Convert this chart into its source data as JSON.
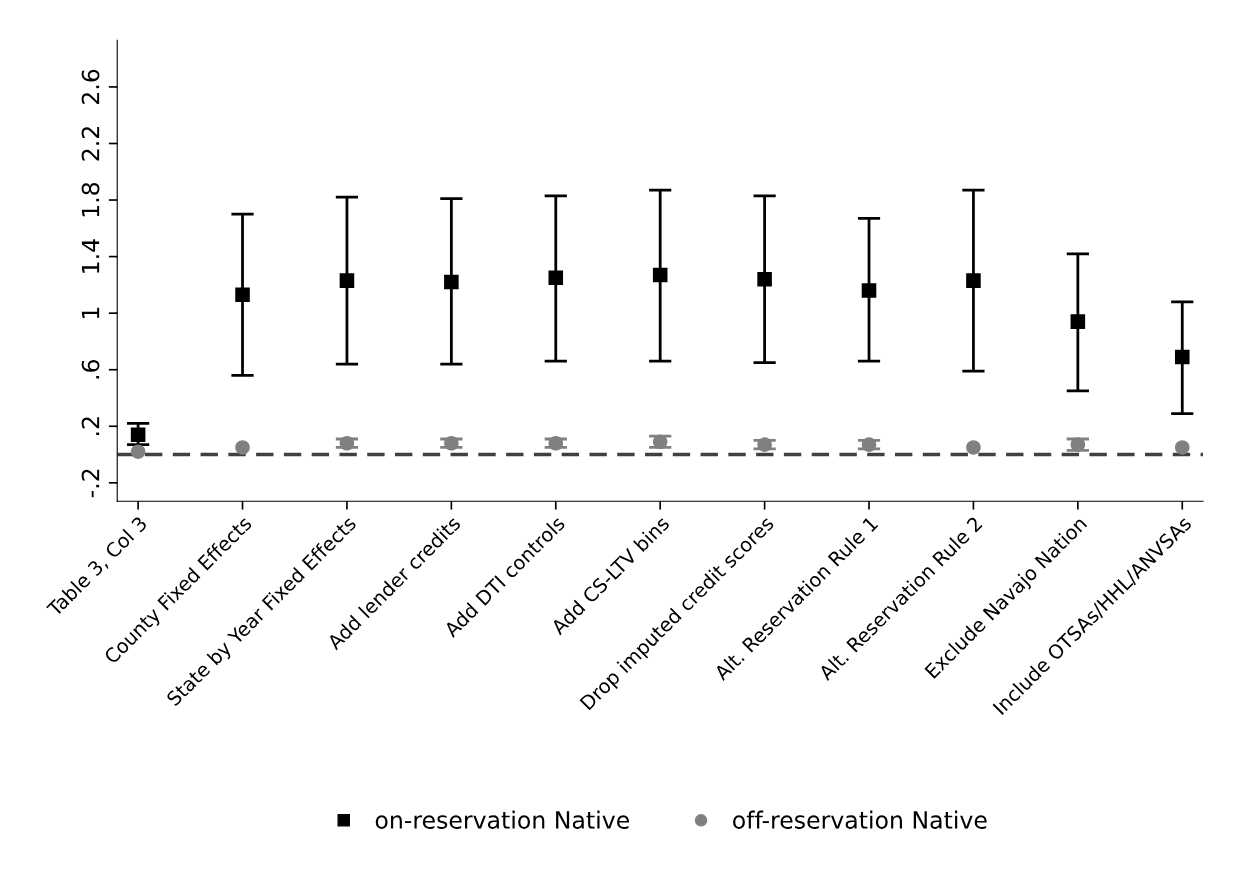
{
  "chart_data": {
    "type": "scatter",
    "categories": [
      "Table 3, Col 3",
      "County Fixed Effects",
      "State by Year Fixed Effects",
      "Add lender credits",
      "Add DTI controls",
      "Add CS-LTV bins",
      "Drop imputed credit scores",
      "Alt. Reservation Rule 1",
      "Alt. Reservation Rule 2",
      "Exclude Navajo Nation",
      "Include OTSAs/HHL/ANVSAs"
    ],
    "series": [
      {
        "name": "on-reservation Native",
        "color": "#000000",
        "marker": "square",
        "values": [
          0.14,
          1.13,
          1.23,
          1.22,
          1.25,
          1.27,
          1.24,
          1.16,
          1.23,
          0.94,
          0.69
        ],
        "errors": [
          [
            0.07,
            0.22
          ],
          [
            0.56,
            1.7
          ],
          [
            0.64,
            1.82
          ],
          [
            0.64,
            1.81
          ],
          [
            0.66,
            1.83
          ],
          [
            0.66,
            1.87
          ],
          [
            0.65,
            1.83
          ],
          [
            0.66,
            1.67
          ],
          [
            0.59,
            1.87
          ],
          [
            0.45,
            1.42
          ],
          [
            0.29,
            1.08
          ]
        ]
      },
      {
        "name": "off-reservation Native",
        "color": "#808080",
        "marker": "circle",
        "values": [
          0.02,
          0.05,
          0.08,
          0.08,
          0.08,
          0.09,
          0.07,
          0.07,
          0.05,
          0.07,
          0.05
        ],
        "errors": [
          null,
          null,
          [
            0.05,
            0.11
          ],
          [
            0.05,
            0.11
          ],
          [
            0.05,
            0.11
          ],
          [
            0.05,
            0.13
          ],
          [
            0.04,
            0.1
          ],
          [
            0.04,
            0.1
          ],
          null,
          [
            0.03,
            0.11
          ],
          null
        ]
      }
    ],
    "ylim": [
      -0.33,
      2.93
    ],
    "yticks": [
      {
        "value": -0.2,
        "label": "-.2"
      },
      {
        "value": 0.2,
        "label": ".2"
      },
      {
        "value": 0.6,
        "label": ".6"
      },
      {
        "value": 1,
        "label": "1"
      },
      {
        "value": 1.4,
        "label": "1.4"
      },
      {
        "value": 1.8,
        "label": "1.8"
      },
      {
        "value": 2.2,
        "label": "2.2"
      },
      {
        "value": 2.6,
        "label": "2.6"
      }
    ],
    "ref_lines": [
      {
        "axis": "y",
        "value": 0,
        "color": "#404040",
        "line_style": "dashed"
      }
    ],
    "grid": false,
    "legend": "bottom"
  }
}
